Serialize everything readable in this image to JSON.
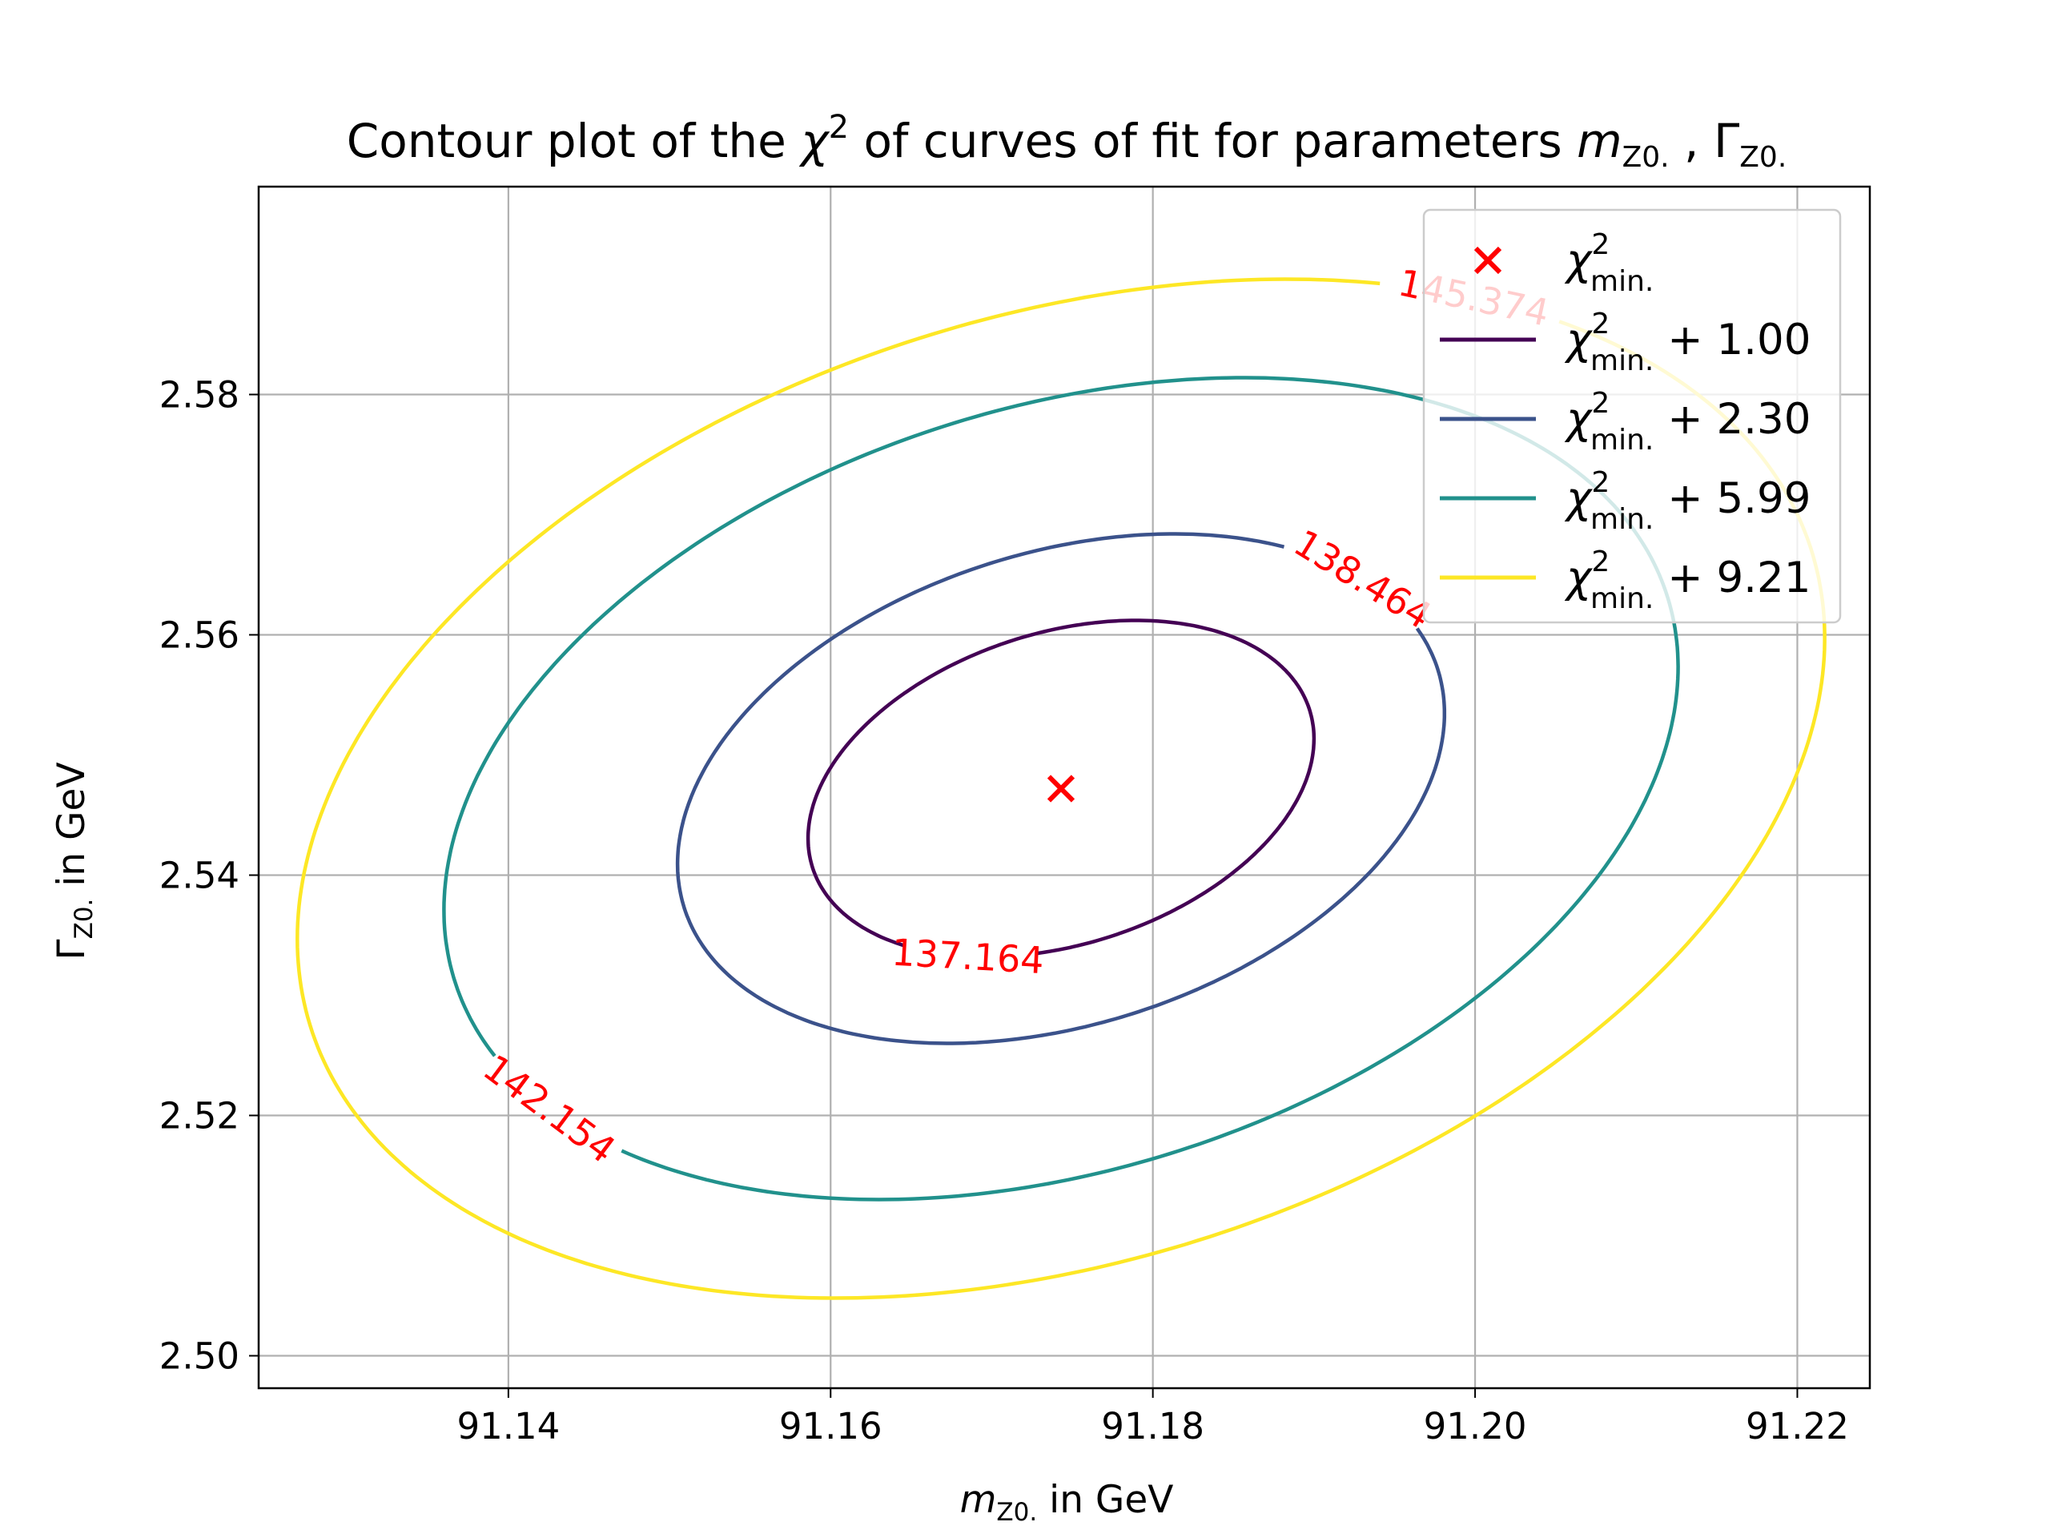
{
  "chart_data": {
    "type": "contour",
    "title": {
      "prefix": "Contour plot of the ",
      "chi": "χ",
      "chi_sup": "2",
      "middle": " of curves of fit for parameters ",
      "m": "m",
      "m_sub": "Z0.",
      "sep": " , ",
      "gamma": "Γ",
      "gamma_sub": "Z0."
    },
    "xlabel": {
      "var": "m",
      "sub": "Z0.",
      "unit": " in GeV"
    },
    "ylabel": {
      "var": "Γ",
      "sub": "Z0.",
      "unit": " in GeV"
    },
    "xlim": [
      91.1245,
      91.2245
    ],
    "ylim": [
      2.4973,
      2.5973
    ],
    "xticks": [
      91.14,
      91.16,
      91.18,
      91.2,
      91.22
    ],
    "xtick_labels": [
      "91.14",
      "91.16",
      "91.18",
      "91.20",
      "91.22"
    ],
    "yticks": [
      2.5,
      2.52,
      2.54,
      2.56,
      2.58
    ],
    "ytick_labels": [
      "2.50",
      "2.52",
      "2.54",
      "2.56",
      "2.58"
    ],
    "grid": true,
    "minimum": {
      "x": 91.1743,
      "y": 2.5472,
      "color": "#ff0000",
      "marker": "x"
    },
    "contours": [
      {
        "name": "χ²min. + 1.00",
        "level": 137.164,
        "label": "137.164",
        "color": "#440154",
        "cx": 91.1743,
        "cy": 2.5472,
        "dx_max": 0.0157,
        "dy_max": 0.014,
        "phi": 0.3,
        "gap": [
          4.05,
          4.62
        ]
      },
      {
        "name": "χ²min. + 2.30",
        "level": 138.464,
        "label": "138.464",
        "color": "#3b528b",
        "cx": 91.1743,
        "cy": 2.5472,
        "dx_max": 0.0238,
        "dy_max": 0.0212,
        "phi": 0.3,
        "gap": [
          0.38,
          0.95
        ]
      },
      {
        "name": "χ²min. + 5.99",
        "level": 142.154,
        "label": "142.154",
        "color": "#21918c",
        "cx": 91.1743,
        "cy": 2.5472,
        "dx_max": 0.0383,
        "dy_max": 0.0342,
        "phi": 0.3,
        "gap": [
          3.55,
          3.92
        ]
      },
      {
        "name": "χ²min. + 9.21",
        "level": 145.374,
        "label": "145.374",
        "color": "#fde725",
        "cx": 91.1743,
        "cy": 2.5472,
        "dx_max": 0.0474,
        "dy_max": 0.0424,
        "phi": 0.3,
        "gap": [
          0.86,
          1.14
        ]
      }
    ],
    "contour_label_color": "#ff0000",
    "legend": {
      "placement": "top-right",
      "items": [
        {
          "marker": "x",
          "color": "#ff0000",
          "base": "χ",
          "sup": "2",
          "sub": "min.",
          "tail": ""
        },
        {
          "marker": "line",
          "color": "#440154",
          "base": "χ",
          "sup": "2",
          "sub": "min.",
          "tail": " + 1.00"
        },
        {
          "marker": "line",
          "color": "#3b528b",
          "base": "χ",
          "sup": "2",
          "sub": "min.",
          "tail": " + 2.30"
        },
        {
          "marker": "line",
          "color": "#21918c",
          "base": "χ",
          "sup": "2",
          "sub": "min.",
          "tail": " + 5.99"
        },
        {
          "marker": "line",
          "color": "#fde725",
          "base": "χ",
          "sup": "2",
          "sub": "min.",
          "tail": " + 9.21"
        }
      ]
    }
  }
}
